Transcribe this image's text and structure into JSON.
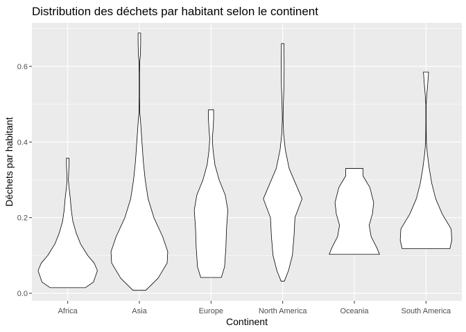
{
  "chart_data": {
    "type": "violin",
    "title": "Distribution des déchets par habitant selon le continent",
    "xlabel": "Continent",
    "ylabel": "Déchets par habitant",
    "ylim": [
      -0.02,
      0.715
    ],
    "yticks": [
      0.0,
      0.2,
      0.4,
      0.6
    ],
    "ytick_labels": [
      "0.0",
      "0.2",
      "0.4",
      "0.6"
    ],
    "grid": true,
    "background": "#ebebeb",
    "gridline_color": "#ffffff",
    "violin_fill": "#ffffff",
    "violin_stroke": "#000000",
    "categories": [
      "Africa",
      "Asia",
      "Europe",
      "North America",
      "Oceania",
      "South America"
    ],
    "series": [
      {
        "category": "Africa",
        "min": 0.015,
        "max": 0.357,
        "density": [
          [
            0.015,
            0.55
          ],
          [
            0.03,
            0.8
          ],
          [
            0.06,
            0.92
          ],
          [
            0.08,
            0.82
          ],
          [
            0.1,
            0.62
          ],
          [
            0.13,
            0.4
          ],
          [
            0.16,
            0.26
          ],
          [
            0.19,
            0.16
          ],
          [
            0.22,
            0.11
          ],
          [
            0.25,
            0.08
          ],
          [
            0.28,
            0.04
          ],
          [
            0.3,
            0.02
          ],
          [
            0.32,
            0.03
          ],
          [
            0.34,
            0.04
          ],
          [
            0.357,
            0.04
          ]
        ]
      },
      {
        "category": "Asia",
        "min": 0.008,
        "max": 0.688,
        "density": [
          [
            0.008,
            0.2
          ],
          [
            0.04,
            0.58
          ],
          [
            0.08,
            0.86
          ],
          [
            0.11,
            0.88
          ],
          [
            0.15,
            0.72
          ],
          [
            0.2,
            0.45
          ],
          [
            0.25,
            0.27
          ],
          [
            0.3,
            0.18
          ],
          [
            0.35,
            0.12
          ],
          [
            0.4,
            0.08
          ],
          [
            0.45,
            0.04
          ],
          [
            0.48,
            0.01
          ],
          [
            0.52,
            0.006
          ],
          [
            0.58,
            0.006
          ],
          [
            0.61,
            0.01
          ],
          [
            0.63,
            0.03
          ],
          [
            0.66,
            0.04
          ],
          [
            0.688,
            0.04
          ]
        ]
      },
      {
        "category": "Europe",
        "min": 0.042,
        "max": 0.485,
        "density": [
          [
            0.042,
            0.32
          ],
          [
            0.07,
            0.42
          ],
          [
            0.12,
            0.46
          ],
          [
            0.17,
            0.48
          ],
          [
            0.22,
            0.52
          ],
          [
            0.26,
            0.44
          ],
          [
            0.3,
            0.25
          ],
          [
            0.34,
            0.12
          ],
          [
            0.38,
            0.06
          ],
          [
            0.41,
            0.04
          ],
          [
            0.43,
            0.06
          ],
          [
            0.46,
            0.08
          ],
          [
            0.485,
            0.08
          ]
        ]
      },
      {
        "category": "North America",
        "min": 0.032,
        "max": 0.66,
        "density": [
          [
            0.032,
            0.05
          ],
          [
            0.06,
            0.18
          ],
          [
            0.1,
            0.3
          ],
          [
            0.15,
            0.35
          ],
          [
            0.2,
            0.38
          ],
          [
            0.25,
            0.6
          ],
          [
            0.29,
            0.4
          ],
          [
            0.33,
            0.2
          ],
          [
            0.38,
            0.08
          ],
          [
            0.42,
            0.03
          ],
          [
            0.46,
            0.01
          ],
          [
            0.5,
            0.02
          ],
          [
            0.55,
            0.04
          ],
          [
            0.6,
            0.045
          ],
          [
            0.66,
            0.04
          ]
        ]
      },
      {
        "category": "Oceania",
        "min": 0.103,
        "max": 0.33,
        "density": [
          [
            0.103,
            0.78
          ],
          [
            0.12,
            0.7
          ],
          [
            0.15,
            0.52
          ],
          [
            0.18,
            0.46
          ],
          [
            0.21,
            0.56
          ],
          [
            0.24,
            0.6
          ],
          [
            0.28,
            0.48
          ],
          [
            0.31,
            0.27
          ],
          [
            0.33,
            0.27
          ]
        ]
      },
      {
        "category": "South America",
        "min": 0.118,
        "max": 0.585,
        "density": [
          [
            0.118,
            0.74
          ],
          [
            0.14,
            0.8
          ],
          [
            0.17,
            0.78
          ],
          [
            0.21,
            0.5
          ],
          [
            0.25,
            0.3
          ],
          [
            0.29,
            0.18
          ],
          [
            0.33,
            0.1
          ],
          [
            0.37,
            0.04
          ],
          [
            0.4,
            0.01
          ],
          [
            0.45,
            0.005
          ],
          [
            0.5,
            0.005
          ],
          [
            0.52,
            0.02
          ],
          [
            0.55,
            0.05
          ],
          [
            0.585,
            0.08
          ]
        ]
      }
    ]
  }
}
